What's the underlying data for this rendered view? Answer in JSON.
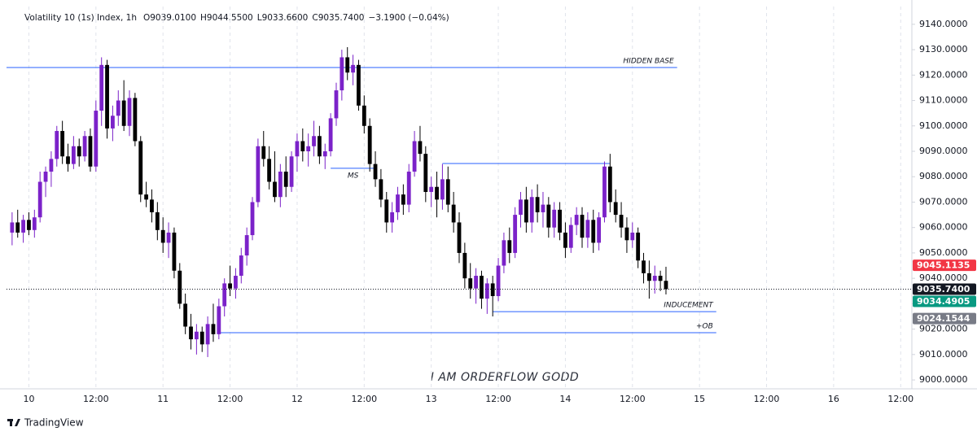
{
  "chart_data": {
    "type": "candlestick",
    "header": {
      "symbol": "Volatility 10 (1s) Index, 1h",
      "ohlc": [
        "O9039.0100",
        "H9044.5500",
        "L9033.6600",
        "C9035.7400",
        "−3.1900 (−0.04%)"
      ]
    },
    "watermark": "I AM ORDERFLOW GODD",
    "brand": "TradingView",
    "up_color": "#7b22c9",
    "down_color": "#000000",
    "line_color": "#2962ff",
    "xlim": [
      -4,
      158
    ],
    "ylim": [
      8996.5,
      9147
    ],
    "grid": true,
    "xticks": [
      {
        "value": 0,
        "label": "10"
      },
      {
        "value": 12,
        "label": "12:00"
      },
      {
        "value": 24,
        "label": "11"
      },
      {
        "value": 36,
        "label": "12:00"
      },
      {
        "value": 48,
        "label": "12"
      },
      {
        "value": 60,
        "label": "12:00"
      },
      {
        "value": 72,
        "label": "13"
      },
      {
        "value": 84,
        "label": "12:00"
      },
      {
        "value": 96,
        "label": "14"
      },
      {
        "value": 108,
        "label": "12:00"
      },
      {
        "value": 120,
        "label": "15"
      },
      {
        "value": 132,
        "label": "12:00"
      },
      {
        "value": 144,
        "label": "16"
      },
      {
        "value": 156,
        "label": "12:00"
      }
    ],
    "yticks": [
      {
        "value": 9000,
        "label": "9000.0000"
      },
      {
        "value": 9010,
        "label": "9010.0000"
      },
      {
        "value": 9020,
        "label": "9020.0000"
      },
      {
        "value": 9030,
        "label": "9030.0000"
      },
      {
        "value": 9040,
        "label": "9040.0000"
      },
      {
        "value": 9050,
        "label": "9050.0000"
      },
      {
        "value": 9060,
        "label": "9060.0000"
      },
      {
        "value": 9070,
        "label": "9070.0000"
      },
      {
        "value": 9080,
        "label": "9080.0000"
      },
      {
        "value": 9090,
        "label": "9090.0000"
      },
      {
        "value": 9100,
        "label": "9100.0000"
      },
      {
        "value": 9110,
        "label": "9110.0000"
      },
      {
        "value": 9120,
        "label": "9120.0000"
      },
      {
        "value": 9130,
        "label": "9130.0000"
      },
      {
        "value": 9140,
        "label": "9140.0000"
      }
    ],
    "price_tags": {
      "values": [
        9045.1135,
        9035.74,
        9034.4905,
        9024.1544
      ],
      "value_labels": [
        "9045.1135",
        "9035.7400",
        "9034.4905",
        "9024.1544"
      ],
      "colors": [
        "#f23645",
        "#131722",
        "#089981",
        "#787b86"
      ]
    },
    "annotations": [
      {
        "label": "HIDDEN BASE",
        "value": 9123,
        "x0": -4,
        "x1": 116
      },
      {
        "label": "MS",
        "value": 9083.3,
        "x0": 54,
        "x1": 62
      },
      {
        "value": 9085.2,
        "x0": 74,
        "x1": 104
      },
      {
        "label": "INDUCEMENT",
        "value": 9026.9,
        "x0": 83,
        "x1": 123
      },
      {
        "label": "+OB",
        "value": 9018.6,
        "x0": 34,
        "x1": 123
      }
    ],
    "candles": [
      [
        -3,
        9058,
        9066,
        9053,
        9062
      ],
      [
        -2,
        9062,
        9067,
        9056,
        9058
      ],
      [
        -1,
        9058,
        9065,
        9054,
        9063
      ],
      [
        0,
        9063,
        9066,
        9057,
        9059
      ],
      [
        1,
        9059,
        9067,
        9056,
        9064
      ],
      [
        2,
        9064,
        9082,
        9062,
        9078
      ],
      [
        3,
        9078,
        9084,
        9072,
        9082
      ],
      [
        4,
        9082,
        9090,
        9076,
        9087
      ],
      [
        5,
        9087,
        9100,
        9084,
        9098
      ],
      [
        6,
        9098,
        9102,
        9085,
        9088
      ],
      [
        7,
        9088,
        9093,
        9082,
        9085
      ],
      [
        8,
        9085,
        9096,
        9083,
        9092
      ],
      [
        9,
        9092,
        9095,
        9084,
        9088
      ],
      [
        10,
        9088,
        9098,
        9086,
        9096
      ],
      [
        11,
        9096,
        9099,
        9082,
        9084
      ],
      [
        12,
        9084,
        9110,
        9082,
        9106
      ],
      [
        13,
        9106,
        9127,
        9100,
        9124
      ],
      [
        14,
        9124,
        9126,
        9095,
        9099
      ],
      [
        15,
        9099,
        9108,
        9094,
        9104
      ],
      [
        16,
        9104,
        9114,
        9100,
        9110
      ],
      [
        17,
        9110,
        9118,
        9098,
        9100
      ],
      [
        18,
        9100,
        9114,
        9096,
        9111
      ],
      [
        19,
        9111,
        9113,
        9092,
        9094
      ],
      [
        20,
        9094,
        9096,
        9070,
        9073
      ],
      [
        21,
        9073,
        9078,
        9068,
        9071
      ],
      [
        22,
        9071,
        9075,
        9062,
        9066
      ],
      [
        23,
        9066,
        9070,
        9055,
        9059
      ],
      [
        24,
        9059,
        9064,
        9050,
        9054
      ],
      [
        25,
        9054,
        9062,
        9048,
        9058
      ],
      [
        26,
        9058,
        9060,
        9040,
        9043
      ],
      [
        27,
        9043,
        9046,
        9028,
        9030
      ],
      [
        28,
        9030,
        9034,
        9018,
        9021
      ],
      [
        29,
        9021,
        9026,
        9012,
        9016
      ],
      [
        30,
        9016,
        9022,
        9010,
        9019
      ],
      [
        31,
        9019,
        9021,
        9011,
        9014
      ],
      [
        32,
        9014,
        9025,
        9009,
        9022
      ],
      [
        33,
        9022,
        9030,
        9015,
        9018
      ],
      [
        34,
        9018,
        9032,
        9016,
        9029
      ],
      [
        35,
        9029,
        9040,
        9025,
        9038
      ],
      [
        36,
        9038,
        9045,
        9033,
        9036
      ],
      [
        37,
        9036,
        9044,
        9032,
        9041
      ],
      [
        38,
        9041,
        9052,
        9038,
        9049
      ],
      [
        39,
        9049,
        9060,
        9045,
        9057
      ],
      [
        40,
        9057,
        9072,
        9055,
        9070
      ],
      [
        41,
        9070,
        9095,
        9068,
        9092
      ],
      [
        42,
        9092,
        9098,
        9084,
        9087
      ],
      [
        43,
        9087,
        9092,
        9075,
        9078
      ],
      [
        44,
        9078,
        9090,
        9070,
        9072
      ],
      [
        45,
        9072,
        9085,
        9068,
        9082
      ],
      [
        46,
        9082,
        9088,
        9072,
        9076
      ],
      [
        47,
        9076,
        9090,
        9074,
        9088
      ],
      [
        48,
        9088,
        9097,
        9082,
        9094
      ],
      [
        49,
        9094,
        9099,
        9086,
        9090
      ],
      [
        50,
        9090,
        9097,
        9084,
        9092
      ],
      [
        51,
        9092,
        9102,
        9088,
        9096
      ],
      [
        52,
        9096,
        9100,
        9085,
        9088
      ],
      [
        53,
        9088,
        9093,
        9083,
        9090
      ],
      [
        54,
        9090,
        9105,
        9088,
        9103
      ],
      [
        55,
        9103,
        9117,
        9100,
        9114
      ],
      [
        56,
        9114,
        9130,
        9110,
        9127
      ],
      [
        57,
        9127,
        9131,
        9118,
        9121
      ],
      [
        58,
        9121,
        9128,
        9116,
        9124
      ],
      [
        59,
        9124,
        9126,
        9106,
        9108
      ],
      [
        60,
        9108,
        9112,
        9097,
        9100
      ],
      [
        61,
        9100,
        9103,
        9082,
        9085
      ],
      [
        62,
        9085,
        9090,
        9076,
        9079
      ],
      [
        63,
        9079,
        9083,
        9068,
        9071
      ],
      [
        64,
        9071,
        9074,
        9058,
        9062
      ],
      [
        65,
        9062,
        9070,
        9058,
        9066
      ],
      [
        66,
        9066,
        9076,
        9063,
        9073
      ],
      [
        67,
        9073,
        9077,
        9065,
        9069
      ],
      [
        68,
        9069,
        9085,
        9066,
        9082
      ],
      [
        69,
        9082,
        9098,
        9080,
        9094
      ],
      [
        70,
        9094,
        9100,
        9086,
        9089
      ],
      [
        71,
        9089,
        9092,
        9070,
        9074
      ],
      [
        72,
        9074,
        9080,
        9068,
        9076
      ],
      [
        73,
        9076,
        9082,
        9064,
        9071
      ],
      [
        74,
        9071,
        9085,
        9067,
        9079
      ],
      [
        75,
        9079,
        9084,
        9066,
        9069
      ],
      [
        76,
        9069,
        9074,
        9058,
        9062
      ],
      [
        77,
        9062,
        9066,
        9046,
        9050
      ],
      [
        78,
        9050,
        9054,
        9036,
        9040
      ],
      [
        79,
        9040,
        9046,
        9032,
        9036
      ],
      [
        80,
        9036,
        9044,
        9030,
        9041
      ],
      [
        81,
        9041,
        9043,
        9028,
        9032
      ],
      [
        82,
        9032,
        9040,
        9026,
        9038
      ],
      [
        83,
        9038,
        9041,
        9025,
        9033
      ],
      [
        84,
        9033,
        9048,
        9031,
        9045
      ],
      [
        85,
        9045,
        9058,
        9042,
        9055
      ],
      [
        86,
        9055,
        9060,
        9046,
        9050
      ],
      [
        87,
        9050,
        9068,
        9048,
        9065
      ],
      [
        88,
        9065,
        9074,
        9060,
        9071
      ],
      [
        89,
        9071,
        9076,
        9058,
        9062
      ],
      [
        90,
        9062,
        9075,
        9058,
        9072
      ],
      [
        91,
        9072,
        9077,
        9062,
        9066
      ],
      [
        92,
        9066,
        9074,
        9060,
        9069
      ],
      [
        93,
        9069,
        9072,
        9056,
        9060
      ],
      [
        94,
        9060,
        9070,
        9056,
        9067
      ],
      [
        95,
        9067,
        9070,
        9055,
        9058
      ],
      [
        96,
        9058,
        9062,
        9048,
        9052
      ],
      [
        97,
        9052,
        9064,
        9050,
        9061
      ],
      [
        98,
        9061,
        9068,
        9057,
        9065
      ],
      [
        99,
        9065,
        9068,
        9052,
        9056
      ],
      [
        100,
        9056,
        9066,
        9052,
        9063
      ],
      [
        101,
        9063,
        9067,
        9050,
        9054
      ],
      [
        102,
        9054,
        9066,
        9051,
        9064
      ],
      [
        103,
        9064,
        9086,
        9062,
        9084
      ],
      [
        104,
        9084,
        9089,
        9066,
        9070
      ],
      [
        105,
        9070,
        9075,
        9062,
        9065
      ],
      [
        106,
        9065,
        9070,
        9056,
        9060
      ],
      [
        107,
        9060,
        9064,
        9050,
        9055
      ],
      [
        108,
        9055,
        9062,
        9052,
        9058
      ],
      [
        109,
        9058,
        9060,
        9044,
        9047
      ],
      [
        110,
        9047,
        9050,
        9038,
        9042
      ],
      [
        111,
        9042,
        9047,
        9032,
        9039
      ],
      [
        112,
        9039,
        9045,
        9034,
        9041
      ],
      [
        113,
        9041,
        9043,
        9035,
        9039
      ],
      [
        114,
        9039.01,
        9044.55,
        9033.66,
        9035.74
      ]
    ]
  }
}
